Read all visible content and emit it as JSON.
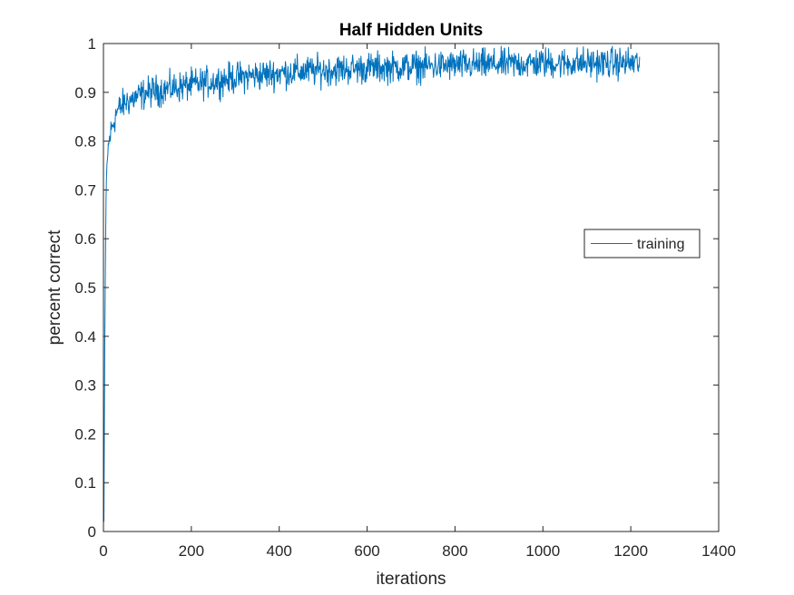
{
  "chart_data": {
    "type": "line",
    "title": "Half Hidden Units",
    "xlabel": "iterations",
    "ylabel": "percent correct",
    "xlim": [
      0,
      1400
    ],
    "ylim": [
      0,
      1
    ],
    "xticks": [
      0,
      200,
      400,
      600,
      800,
      1000,
      1200,
      1400
    ],
    "xtick_labels": [
      "0",
      "200",
      "400",
      "600",
      "800",
      "1000",
      "1200",
      "1400"
    ],
    "yticks": [
      0,
      0.1,
      0.2,
      0.3,
      0.4,
      0.5,
      0.6,
      0.7,
      0.8,
      0.9,
      1
    ],
    "ytick_labels": [
      "0",
      "0.1",
      "0.2",
      "0.3",
      "0.4",
      "0.5",
      "0.6",
      "0.7",
      "0.8",
      "0.9",
      "1"
    ],
    "grid": false,
    "legend_position": "right",
    "series": [
      {
        "name": "training",
        "color": "#0072bd",
        "x_start": 1,
        "x_end": 1220,
        "trend_points": [
          [
            1,
            0.02
          ],
          [
            2,
            0.2
          ],
          [
            3,
            0.38
          ],
          [
            5,
            0.6
          ],
          [
            7,
            0.72
          ],
          [
            10,
            0.78
          ],
          [
            15,
            0.81
          ],
          [
            20,
            0.83
          ],
          [
            30,
            0.86
          ],
          [
            50,
            0.88
          ],
          [
            100,
            0.9
          ],
          [
            200,
            0.915
          ],
          [
            300,
            0.93
          ],
          [
            400,
            0.94
          ],
          [
            600,
            0.95
          ],
          [
            800,
            0.955
          ],
          [
            1000,
            0.96
          ],
          [
            1220,
            0.96
          ]
        ],
        "noise_amplitude": 0.025
      }
    ]
  }
}
